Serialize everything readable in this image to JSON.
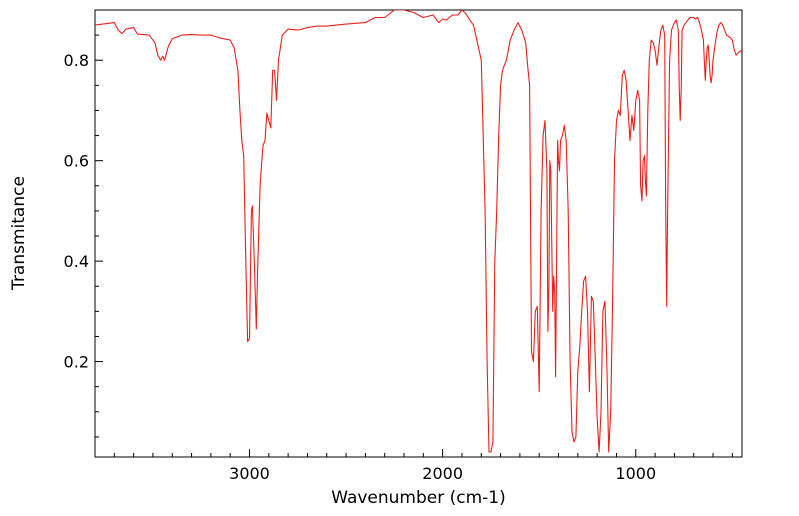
{
  "chart_data": {
    "type": "line",
    "title": "",
    "xlabel": "Wavenumber (cm-1)",
    "ylabel": "Transmitance",
    "xlim": [
      3800,
      450
    ],
    "ylim": [
      0.01,
      0.9
    ],
    "x_reversed": true,
    "x_ticks": [
      3000,
      2000,
      1000
    ],
    "y_ticks": [
      0.2,
      0.4,
      0.6,
      0.8
    ],
    "x_tick_labels": [
      "3000",
      "2000",
      "1000"
    ],
    "y_tick_labels": [
      "0.2",
      "0.4",
      "0.6",
      "0.8"
    ],
    "grid": false,
    "legend": "none",
    "series": [
      {
        "name": "IR spectrum",
        "color": "#e8201c",
        "points": [
          [
            3800,
            0.87
          ],
          [
            3700,
            0.875
          ],
          [
            3680,
            0.86
          ],
          [
            3660,
            0.853
          ],
          [
            3640,
            0.862
          ],
          [
            3600,
            0.865
          ],
          [
            3580,
            0.852
          ],
          [
            3520,
            0.85
          ],
          [
            3490,
            0.835
          ],
          [
            3475,
            0.81
          ],
          [
            3460,
            0.8
          ],
          [
            3450,
            0.808
          ],
          [
            3440,
            0.8
          ],
          [
            3420,
            0.828
          ],
          [
            3400,
            0.843
          ],
          [
            3350,
            0.85
          ],
          [
            3300,
            0.851
          ],
          [
            3250,
            0.85
          ],
          [
            3200,
            0.85
          ],
          [
            3150,
            0.844
          ],
          [
            3100,
            0.84
          ],
          [
            3080,
            0.825
          ],
          [
            3060,
            0.78
          ],
          [
            3050,
            0.7
          ],
          [
            3040,
            0.64
          ],
          [
            3030,
            0.61
          ],
          [
            3020,
            0.42
          ],
          [
            3010,
            0.24
          ],
          [
            3000,
            0.245
          ],
          [
            2990,
            0.5
          ],
          [
            2985,
            0.51
          ],
          [
            2975,
            0.4
          ],
          [
            2965,
            0.265
          ],
          [
            2958,
            0.38
          ],
          [
            2945,
            0.55
          ],
          [
            2940,
            0.58
          ],
          [
            2930,
            0.63
          ],
          [
            2920,
            0.64
          ],
          [
            2910,
            0.695
          ],
          [
            2900,
            0.68
          ],
          [
            2890,
            0.665
          ],
          [
            2880,
            0.78
          ],
          [
            2870,
            0.78
          ],
          [
            2860,
            0.72
          ],
          [
            2850,
            0.8
          ],
          [
            2830,
            0.85
          ],
          [
            2800,
            0.862
          ],
          [
            2750,
            0.86
          ],
          [
            2700,
            0.865
          ],
          [
            2650,
            0.868
          ],
          [
            2600,
            0.868
          ],
          [
            2500,
            0.872
          ],
          [
            2400,
            0.875
          ],
          [
            2350,
            0.885
          ],
          [
            2300,
            0.885
          ],
          [
            2250,
            0.9
          ],
          [
            2200,
            0.9
          ],
          [
            2150,
            0.895
          ],
          [
            2100,
            0.885
          ],
          [
            2050,
            0.89
          ],
          [
            2020,
            0.875
          ],
          [
            2000,
            0.882
          ],
          [
            1980,
            0.88
          ],
          [
            1950,
            0.89
          ],
          [
            1920,
            0.89
          ],
          [
            1900,
            0.9
          ],
          [
            1880,
            0.893
          ],
          [
            1860,
            0.88
          ],
          [
            1840,
            0.87
          ],
          [
            1800,
            0.8
          ],
          [
            1780,
            0.5
          ],
          [
            1770,
            0.2
          ],
          [
            1760,
            0.02
          ],
          [
            1750,
            0.02
          ],
          [
            1740,
            0.04
          ],
          [
            1730,
            0.4
          ],
          [
            1720,
            0.5
          ],
          [
            1710,
            0.65
          ],
          [
            1700,
            0.75
          ],
          [
            1690,
            0.78
          ],
          [
            1680,
            0.79
          ],
          [
            1670,
            0.8
          ],
          [
            1650,
            0.84
          ],
          [
            1630,
            0.86
          ],
          [
            1610,
            0.875
          ],
          [
            1590,
            0.86
          ],
          [
            1570,
            0.835
          ],
          [
            1560,
            0.79
          ],
          [
            1550,
            0.75
          ],
          [
            1540,
            0.22
          ],
          [
            1530,
            0.2
          ],
          [
            1520,
            0.3
          ],
          [
            1510,
            0.31
          ],
          [
            1500,
            0.14
          ],
          [
            1490,
            0.5
          ],
          [
            1480,
            0.65
          ],
          [
            1470,
            0.68
          ],
          [
            1460,
            0.58
          ],
          [
            1455,
            0.26
          ],
          [
            1450,
            0.35
          ],
          [
            1445,
            0.6
          ],
          [
            1440,
            0.58
          ],
          [
            1430,
            0.3
          ],
          [
            1425,
            0.37
          ],
          [
            1420,
            0.34
          ],
          [
            1415,
            0.17
          ],
          [
            1410,
            0.4
          ],
          [
            1405,
            0.64
          ],
          [
            1400,
            0.6
          ],
          [
            1395,
            0.58
          ],
          [
            1390,
            0.64
          ],
          [
            1380,
            0.65
          ],
          [
            1370,
            0.67
          ],
          [
            1360,
            0.64
          ],
          [
            1350,
            0.5
          ],
          [
            1340,
            0.2
          ],
          [
            1330,
            0.06
          ],
          [
            1320,
            0.04
          ],
          [
            1310,
            0.05
          ],
          [
            1300,
            0.18
          ],
          [
            1290,
            0.23
          ],
          [
            1280,
            0.3
          ],
          [
            1270,
            0.36
          ],
          [
            1260,
            0.37
          ],
          [
            1250,
            0.3
          ],
          [
            1240,
            0.14
          ],
          [
            1230,
            0.33
          ],
          [
            1220,
            0.32
          ],
          [
            1210,
            0.21
          ],
          [
            1200,
            0.09
          ],
          [
            1190,
            0.02
          ],
          [
            1180,
            0.1
          ],
          [
            1170,
            0.3
          ],
          [
            1160,
            0.32
          ],
          [
            1150,
            0.2
          ],
          [
            1140,
            0.02
          ],
          [
            1130,
            0.1
          ],
          [
            1120,
            0.32
          ],
          [
            1110,
            0.6
          ],
          [
            1100,
            0.68
          ],
          [
            1090,
            0.7
          ],
          [
            1080,
            0.69
          ],
          [
            1070,
            0.77
          ],
          [
            1060,
            0.78
          ],
          [
            1050,
            0.76
          ],
          [
            1040,
            0.7
          ],
          [
            1030,
            0.64
          ],
          [
            1020,
            0.69
          ],
          [
            1010,
            0.66
          ],
          [
            1000,
            0.72
          ],
          [
            990,
            0.74
          ],
          [
            980,
            0.72
          ],
          [
            975,
            0.55
          ],
          [
            968,
            0.52
          ],
          [
            962,
            0.6
          ],
          [
            955,
            0.61
          ],
          [
            950,
            0.56
          ],
          [
            945,
            0.53
          ],
          [
            938,
            0.7
          ],
          [
            930,
            0.8
          ],
          [
            920,
            0.84
          ],
          [
            910,
            0.835
          ],
          [
            900,
            0.82
          ],
          [
            890,
            0.79
          ],
          [
            880,
            0.83
          ],
          [
            870,
            0.86
          ],
          [
            860,
            0.87
          ],
          [
            850,
            0.85
          ],
          [
            845,
            0.5
          ],
          [
            840,
            0.31
          ],
          [
            835,
            0.5
          ],
          [
            825,
            0.8
          ],
          [
            815,
            0.86
          ],
          [
            800,
            0.875
          ],
          [
            790,
            0.88
          ],
          [
            780,
            0.86
          ],
          [
            775,
            0.75
          ],
          [
            770,
            0.68
          ],
          [
            765,
            0.74
          ],
          [
            760,
            0.86
          ],
          [
            750,
            0.87
          ],
          [
            740,
            0.875
          ],
          [
            720,
            0.885
          ],
          [
            700,
            0.885
          ],
          [
            690,
            0.882
          ],
          [
            680,
            0.885
          ],
          [
            670,
            0.875
          ],
          [
            660,
            0.86
          ],
          [
            650,
            0.84
          ],
          [
            645,
            0.8
          ],
          [
            640,
            0.76
          ],
          [
            635,
            0.8
          ],
          [
            630,
            0.825
          ],
          [
            625,
            0.83
          ],
          [
            620,
            0.8
          ],
          [
            615,
            0.77
          ],
          [
            610,
            0.755
          ],
          [
            605,
            0.77
          ],
          [
            600,
            0.8
          ],
          [
            590,
            0.83
          ],
          [
            580,
            0.855
          ],
          [
            570,
            0.87
          ],
          [
            560,
            0.875
          ],
          [
            550,
            0.87
          ],
          [
            540,
            0.86
          ],
          [
            530,
            0.85
          ],
          [
            510,
            0.845
          ],
          [
            500,
            0.84
          ],
          [
            490,
            0.82
          ],
          [
            480,
            0.81
          ],
          [
            470,
            0.815
          ],
          [
            450,
            0.82
          ]
        ]
      }
    ]
  }
}
